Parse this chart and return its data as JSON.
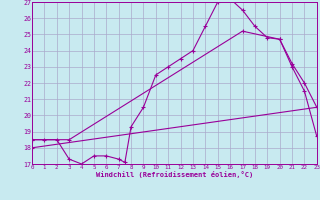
{
  "xlabel": "Windchill (Refroidissement éolien,°C)",
  "xlim": [
    0,
    23
  ],
  "ylim": [
    17,
    27
  ],
  "yticks": [
    17,
    18,
    19,
    20,
    21,
    22,
    23,
    24,
    25,
    26,
    27
  ],
  "xticks": [
    0,
    1,
    2,
    3,
    4,
    5,
    6,
    7,
    8,
    9,
    10,
    11,
    12,
    13,
    14,
    15,
    16,
    17,
    18,
    19,
    20,
    21,
    22,
    23
  ],
  "background_color": "#c8eaf0",
  "line_color": "#990099",
  "grid_color": "#aaaacc",
  "line1_x": [
    0,
    1,
    2,
    3,
    4,
    5,
    6,
    7,
    7.5,
    8,
    9,
    10,
    11,
    12,
    13,
    14,
    15,
    16,
    17,
    18,
    19,
    20,
    21,
    22,
    23
  ],
  "line1_y": [
    18.5,
    18.5,
    18.5,
    17.3,
    17.0,
    17.5,
    17.5,
    17.3,
    17.1,
    19.3,
    20.5,
    22.5,
    23.0,
    23.5,
    24.0,
    25.5,
    27.0,
    27.2,
    26.5,
    25.5,
    24.8,
    24.7,
    23.0,
    21.5,
    18.7
  ],
  "line2_x": [
    0,
    3,
    17,
    20,
    21,
    22,
    23
  ],
  "line2_y": [
    18.5,
    18.5,
    25.2,
    24.7,
    23.2,
    22.0,
    20.5
  ],
  "line3_x": [
    0,
    23
  ],
  "line3_y": [
    18.0,
    20.5
  ]
}
